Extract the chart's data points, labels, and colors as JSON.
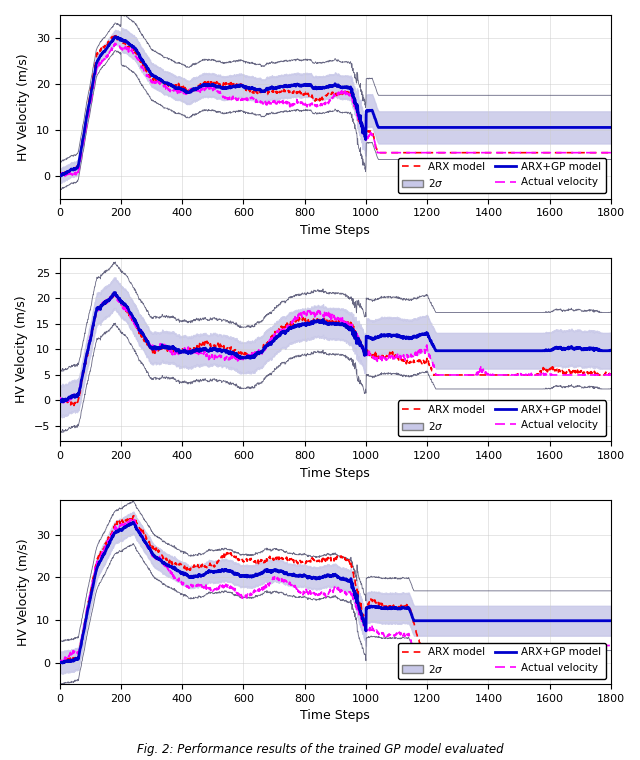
{
  "xlim": [
    0,
    1800
  ],
  "xticks": [
    0,
    200,
    400,
    600,
    800,
    1000,
    1200,
    1400,
    1600,
    1800
  ],
  "xlabel": "Time Steps",
  "ylabel": "HV Velocity (m/s)",
  "subplot1": {
    "ylim": [
      -5,
      35
    ],
    "yticks": [
      0,
      10,
      20,
      30
    ]
  },
  "subplot2": {
    "ylim": [
      -8,
      28
    ],
    "yticks": [
      -5,
      0,
      5,
      10,
      15,
      20,
      25
    ]
  },
  "subplot3": {
    "ylim": [
      -5,
      38
    ],
    "yticks": [
      0,
      10,
      20,
      30
    ]
  },
  "legend_labels": [
    "ARX model",
    "2σ",
    "ARX+GP model",
    "Actual velocity"
  ],
  "arx_color": "#ff0000",
  "gp_color": "#0000cc",
  "actual_color": "#ff00ff",
  "sigma_color": "#c8c8e8",
  "sigma_edge_color": "#444466",
  "figure_caption": "Fig. 2: Performance results of the trained GP model evaluated",
  "title_fontsize": 9,
  "tick_fontsize": 8,
  "label_fontsize": 9
}
